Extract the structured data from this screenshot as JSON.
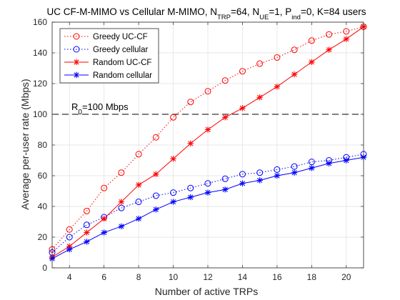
{
  "chart_data": {
    "type": "line",
    "title": {
      "pre": "UC CF-M-MIMO vs Cellular M-MIMO, N",
      "sub1": "TRP",
      "mid1": "=64, N",
      "sub2": "UE",
      "mid2": "=1, P",
      "sub3": "ind",
      "post": "=0, K=84 users"
    },
    "xlabel": "Number of active TRPs",
    "ylabel": "Average per-user rate (Mbps)",
    "xlim": [
      3,
      21
    ],
    "ylim": [
      0,
      160
    ],
    "xticks": [
      4,
      6,
      8,
      10,
      12,
      14,
      16,
      18,
      20
    ],
    "yticks": [
      0,
      20,
      40,
      60,
      80,
      100,
      120,
      140,
      160
    ],
    "grid": true,
    "legend_position": "top-left",
    "x": [
      3,
      4,
      5,
      6,
      7,
      8,
      9,
      10,
      11,
      12,
      13,
      14,
      15,
      16,
      17,
      18,
      19,
      20,
      21
    ],
    "series": [
      {
        "name": "Greedy UC-CF",
        "color": "#ff0000",
        "line": "dotted",
        "marker": "circle",
        "values": [
          12,
          25,
          37,
          52,
          62,
          74,
          85,
          98,
          108,
          115,
          122,
          128,
          133,
          137,
          142,
          148,
          152,
          154,
          157
        ]
      },
      {
        "name": "Greedy cellular",
        "color": "#0000ff",
        "line": "dotted",
        "marker": "circle",
        "values": [
          10,
          20,
          28,
          33,
          39,
          43,
          47,
          49,
          52,
          55,
          58,
          61,
          62,
          64,
          66,
          69,
          70,
          72,
          74
        ]
      },
      {
        "name": "Random UC-CF",
        "color": "#ff0000",
        "line": "solid",
        "marker": "star",
        "values": [
          7,
          14,
          23,
          32,
          43,
          54,
          61,
          71,
          81,
          90,
          98,
          104,
          111,
          118,
          126,
          134,
          142,
          149,
          157
        ]
      },
      {
        "name": "Random cellular",
        "color": "#0000ff",
        "line": "solid",
        "marker": "star",
        "values": [
          6,
          12,
          17,
          23,
          27,
          32,
          38,
          43,
          46,
          49,
          51,
          55,
          57,
          60,
          62,
          65,
          68,
          70,
          72
        ]
      }
    ],
    "reference_line": {
      "y": 100,
      "style": "dashed",
      "color": "#000000",
      "label_pre": "R",
      "label_sub": "0",
      "label_post": "=100 Mbps"
    }
  }
}
